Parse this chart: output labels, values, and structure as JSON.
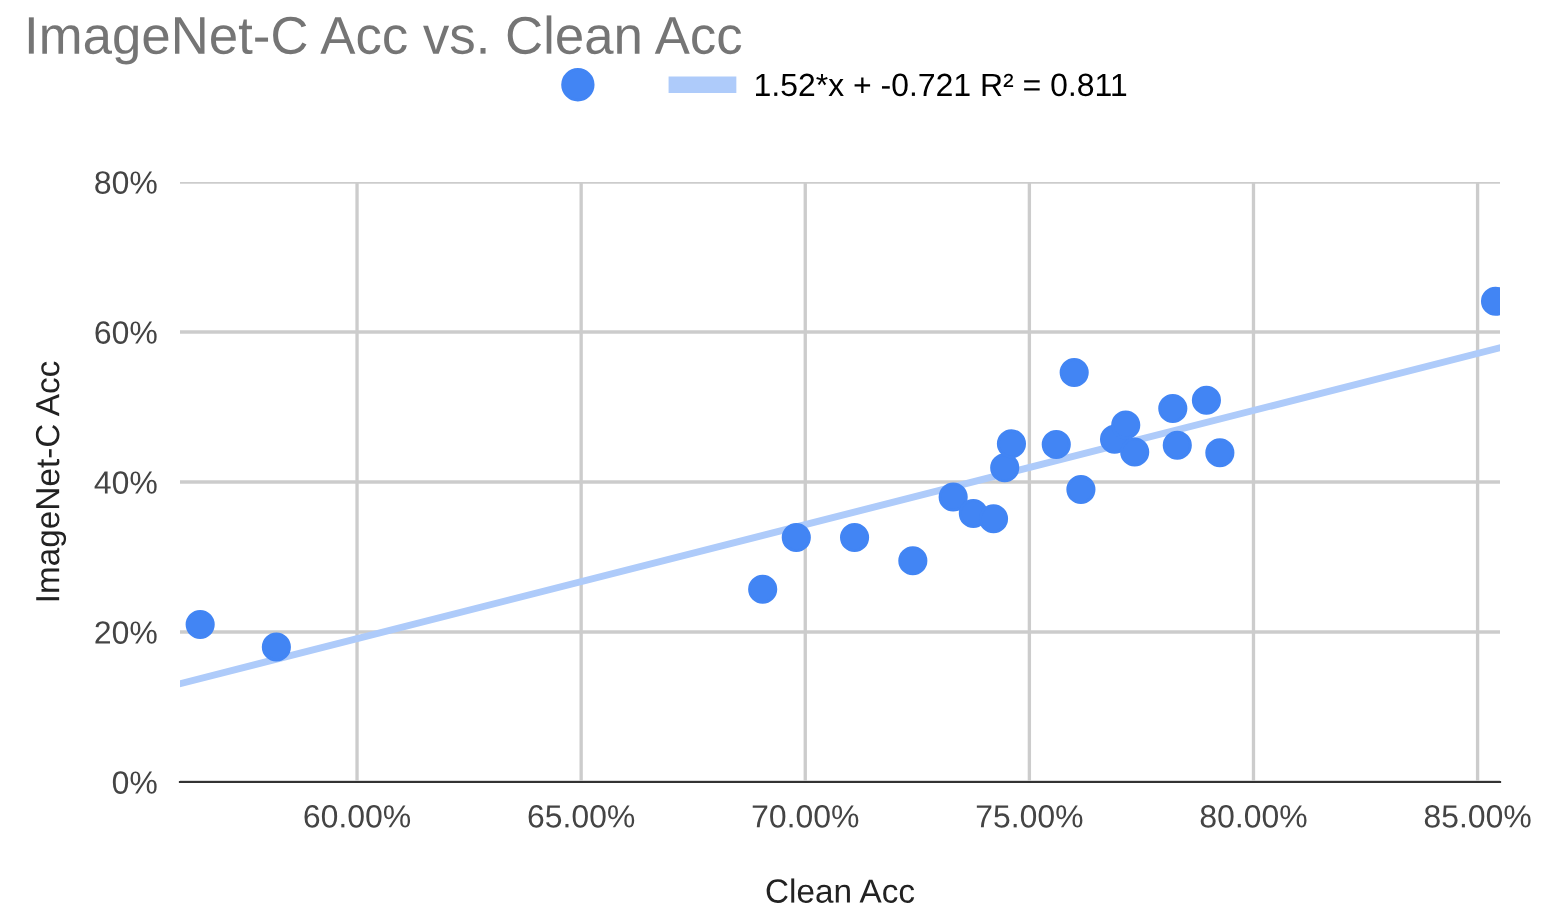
{
  "chart_data": {
    "type": "scatter",
    "title": "ImageNet-C Acc vs. Clean Acc",
    "xlabel": "Clean Acc",
    "ylabel": "ImageNet-C Acc",
    "series": [
      {
        "color": "#4285f4",
        "marker": "circle",
        "x": [
          56.5,
          58.2,
          69.05,
          69.8,
          71.1,
          72.4,
          73.3,
          73.75,
          74.2,
          74.45,
          74.6,
          75.6,
          76.0,
          76.15,
          76.9,
          77.15,
          77.35,
          78.2,
          78.3,
          78.95,
          79.25,
          85.4
        ],
        "values": [
          21.0,
          18.0,
          25.7,
          32.6,
          32.6,
          29.5,
          38.0,
          35.8,
          35.1,
          41.9,
          45.1,
          45.0,
          54.6,
          39.0,
          45.7,
          47.6,
          44.0,
          49.8,
          44.9,
          50.9,
          43.9,
          64.1
        ]
      },
      {
        "type": "line",
        "marker": "none",
        "name": "1.52*x + -0.721 R² = 0.811",
        "color": "#aecbfa",
        "x": [
          56.05,
          85.5
        ],
        "values": [
          13.1,
          57.9
        ]
      }
    ],
    "xlim": [
      56.05,
      85.5
    ],
    "ylim": [
      0,
      80
    ],
    "xticks": [
      {
        "value": 60,
        "label": "60.00%"
      },
      {
        "value": 65,
        "label": "65.00%"
      },
      {
        "value": 70,
        "label": "70.00%"
      },
      {
        "value": 75,
        "label": "75.00%"
      },
      {
        "value": 80,
        "label": "80.00%"
      },
      {
        "value": 85,
        "label": "85.00%"
      }
    ],
    "yticks": [
      {
        "value": 0,
        "label": "0%"
      },
      {
        "value": 20,
        "label": "20%"
      },
      {
        "value": 40,
        "label": "40%"
      },
      {
        "value": 60,
        "label": "60%"
      },
      {
        "value": 80,
        "label": "80%"
      }
    ],
    "grid": true,
    "legend": "top",
    "line_style": "solid"
  }
}
